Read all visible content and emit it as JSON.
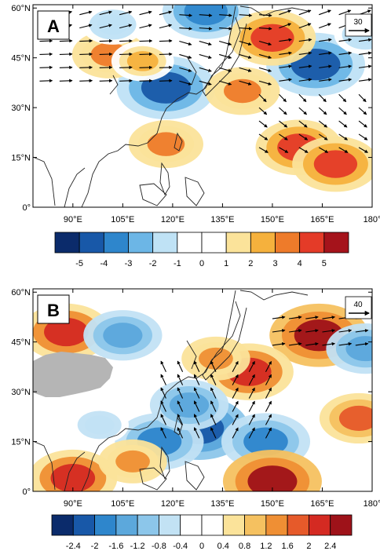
{
  "panels": [
    {
      "id": "A",
      "label": "A",
      "ref_vector_label": "30",
      "lat_ticks": [
        "60°N",
        "45°N",
        "30°N",
        "15°N",
        "0°"
      ],
      "lon_ticks": [
        "90°E",
        "105°E",
        "120°E",
        "135°E",
        "150°E",
        "165°E",
        "180°"
      ],
      "lat_values": [
        60,
        45,
        30,
        15,
        0
      ],
      "lon_values": [
        90,
        105,
        120,
        135,
        150,
        165,
        180
      ],
      "colorbar_labels": [
        "-5",
        "-4",
        "-3",
        "-2",
        "-1",
        "0",
        "1",
        "2",
        "3",
        "4",
        "5"
      ],
      "colorbar_colors": [
        "#0b2b6b",
        "#1858a8",
        "#2e86cc",
        "#6cb6e6",
        "#bfe2f5",
        "#ffffff",
        "#ffffff",
        "#fbe39a",
        "#f5b13d",
        "#ee7b2a",
        "#e43b28",
        "#a5131b"
      ],
      "colorbar_values": [
        -5,
        -4,
        -3,
        -2,
        -1,
        0,
        1,
        2,
        3,
        4,
        5
      ],
      "anomalies": [
        {
          "lon": 118,
          "lat": 36,
          "value": -5
        },
        {
          "lon": 130,
          "lat": 59,
          "value": -4
        },
        {
          "lon": 163,
          "lat": 43,
          "value": -5
        },
        {
          "lon": 101,
          "lat": 46,
          "value": 3
        },
        {
          "lon": 111,
          "lat": 44,
          "value": 2
        },
        {
          "lon": 150,
          "lat": 51,
          "value": 4
        },
        {
          "lon": 141,
          "lat": 35,
          "value": 3
        },
        {
          "lon": 158,
          "lat": 18,
          "value": 4
        },
        {
          "lon": 118,
          "lat": 19,
          "value": 3
        },
        {
          "lon": 169,
          "lat": 13,
          "value": 4
        },
        {
          "lon": 88,
          "lat": 33,
          "value": -1
        },
        {
          "lon": 102,
          "lat": 55,
          "value": -2
        },
        {
          "lon": 178,
          "lat": 52,
          "value": -2
        }
      ]
    },
    {
      "id": "B",
      "label": "B",
      "ref_vector_label": "40",
      "lat_ticks": [
        "60°N",
        "45°N",
        "30°N",
        "15°N",
        "0°"
      ],
      "lon_ticks": [
        "90°E",
        "105°E",
        "120°E",
        "135°E",
        "150°E",
        "165°E",
        "180°"
      ],
      "lat_values": [
        60,
        45,
        30,
        15,
        0
      ],
      "lon_values": [
        90,
        105,
        120,
        135,
        150,
        165,
        180
      ],
      "colorbar_labels": [
        "-2.4",
        "-2",
        "-1.6",
        "-1.2",
        "-0.8",
        "-0.4",
        "0",
        "0.4",
        "0.8",
        "1.2",
        "1.6",
        "2",
        "2.4"
      ],
      "colorbar_colors": [
        "#0b2b6b",
        "#1858a8",
        "#2e86cc",
        "#5ca8dc",
        "#8cc6ea",
        "#c2e2f4",
        "#ffffff",
        "#ffffff",
        "#fbe39a",
        "#f5c160",
        "#ef8f34",
        "#e65a2a",
        "#d42a22",
        "#9e1219"
      ],
      "colorbar_values": [
        -2.4,
        -2,
        -1.6,
        -1.2,
        -0.8,
        -0.4,
        0,
        0.4,
        0.8,
        1.2,
        1.6,
        2,
        2.4
      ],
      "masked_region": "Tibetan Plateau",
      "mask_color": "#b5b5b5",
      "anomalies": [
        {
          "lon": 164,
          "lat": 47,
          "value": 2.4
        },
        {
          "lon": 88,
          "lat": 48,
          "value": 2
        },
        {
          "lon": 128,
          "lat": 19,
          "value": -2.4
        },
        {
          "lon": 148,
          "lat": 15,
          "value": -2
        },
        {
          "lon": 150,
          "lat": 3,
          "value": 2.4
        },
        {
          "lon": 116,
          "lat": 15,
          "value": -2
        },
        {
          "lon": 143,
          "lat": 36,
          "value": 2
        },
        {
          "lon": 125,
          "lat": 26,
          "value": -1.6
        },
        {
          "lon": 133,
          "lat": 40,
          "value": 1.2
        },
        {
          "lon": 105,
          "lat": 47,
          "value": -1.6
        },
        {
          "lon": 90,
          "lat": 4,
          "value": 2
        },
        {
          "lon": 176,
          "lat": 22,
          "value": 1.6
        },
        {
          "lon": 178,
          "lat": 43,
          "value": -1.6
        },
        {
          "lon": 98,
          "lat": 20,
          "value": -0.8
        },
        {
          "lon": 108,
          "lat": 9,
          "value": 1.2
        }
      ]
    }
  ]
}
